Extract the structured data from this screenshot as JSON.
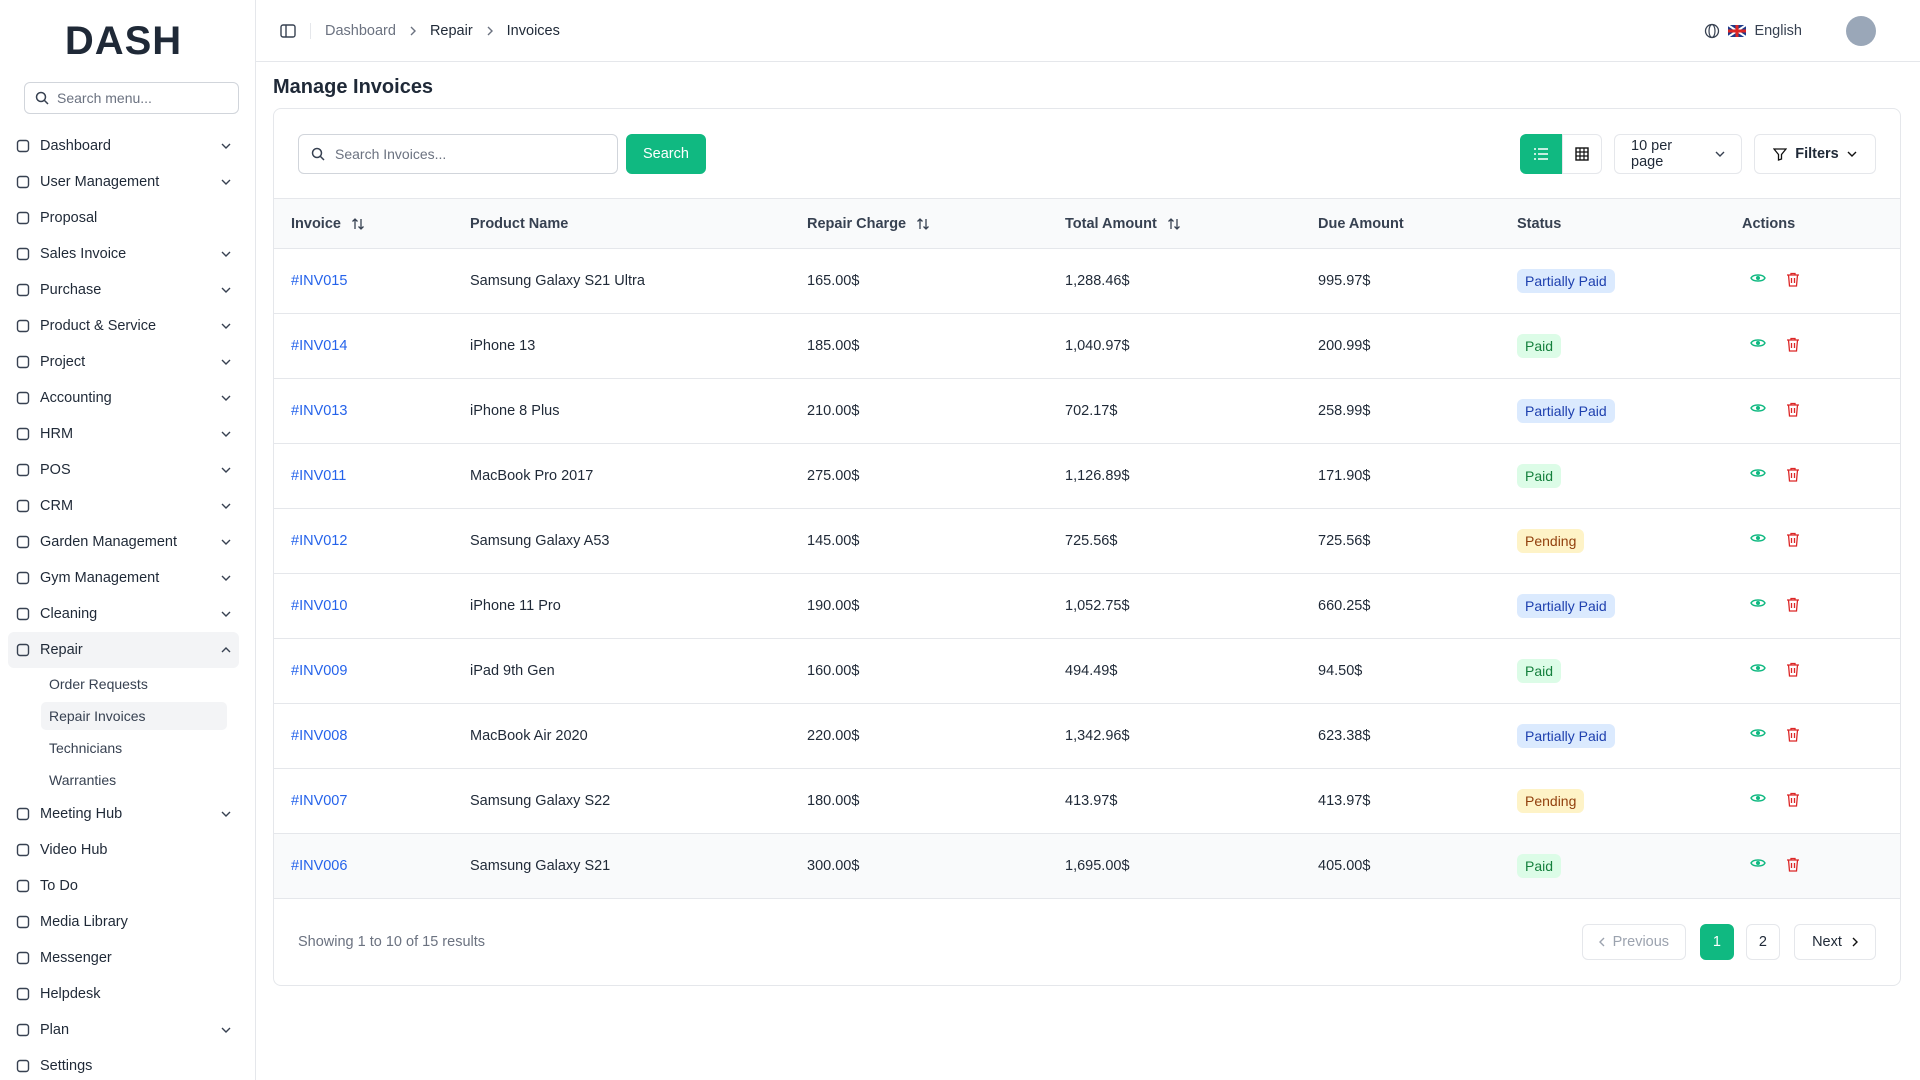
{
  "brand": "DASH",
  "sidebar": {
    "search_placeholder": "Search menu...",
    "items": [
      {
        "label": "Dashboard",
        "expandable": true
      },
      {
        "label": "User Management",
        "expandable": true
      },
      {
        "label": "Proposal",
        "expandable": false
      },
      {
        "label": "Sales Invoice",
        "expandable": true
      },
      {
        "label": "Purchase",
        "expandable": true
      },
      {
        "label": "Product & Service",
        "expandable": true
      },
      {
        "label": "Project",
        "expandable": true
      },
      {
        "label": "Accounting",
        "expandable": true
      },
      {
        "label": "HRM",
        "expandable": true
      },
      {
        "label": "POS",
        "expandable": true
      },
      {
        "label": "CRM",
        "expandable": true
      },
      {
        "label": "Garden Management",
        "expandable": true
      },
      {
        "label": "Gym Management",
        "expandable": true
      },
      {
        "label": "Cleaning",
        "expandable": true
      },
      {
        "label": "Repair",
        "expandable": true,
        "open": true,
        "children": [
          {
            "label": "Order Requests"
          },
          {
            "label": "Repair Invoices",
            "active": true
          },
          {
            "label": "Technicians"
          },
          {
            "label": "Warranties"
          }
        ]
      },
      {
        "label": "Meeting Hub",
        "expandable": true
      },
      {
        "label": "Video Hub",
        "expandable": false
      },
      {
        "label": "To Do",
        "expandable": false
      },
      {
        "label": "Media Library",
        "expandable": false
      },
      {
        "label": "Messenger",
        "expandable": false
      },
      {
        "label": "Helpdesk",
        "expandable": false
      },
      {
        "label": "Plan",
        "expandable": true
      },
      {
        "label": "Settings",
        "expandable": false
      }
    ]
  },
  "header": {
    "breadcrumb": [
      "Dashboard",
      "Repair",
      "Invoices"
    ],
    "language": "English"
  },
  "page": {
    "title": "Manage Invoices",
    "search_placeholder": "Search Invoices...",
    "search_button": "Search",
    "per_page": "10 per page",
    "filters": "Filters"
  },
  "table": {
    "columns": [
      {
        "label": "Invoice",
        "sortable": true
      },
      {
        "label": "Product Name",
        "sortable": false
      },
      {
        "label": "Repair Charge",
        "sortable": true
      },
      {
        "label": "Total Amount",
        "sortable": true
      },
      {
        "label": "Due Amount",
        "sortable": false
      },
      {
        "label": "Status",
        "sortable": false
      },
      {
        "label": "Actions",
        "sortable": false
      }
    ],
    "rows": [
      {
        "invoice": "#INV015",
        "product": "Samsung Galaxy S21 Ultra",
        "repair_charge": "165.00$",
        "total": "1,288.46$",
        "due": "995.97$",
        "status": "Partially Paid",
        "status_tone": "blue"
      },
      {
        "invoice": "#INV014",
        "product": "iPhone 13",
        "repair_charge": "185.00$",
        "total": "1,040.97$",
        "due": "200.99$",
        "status": "Paid",
        "status_tone": "green"
      },
      {
        "invoice": "#INV013",
        "product": "iPhone 8 Plus",
        "repair_charge": "210.00$",
        "total": "702.17$",
        "due": "258.99$",
        "status": "Partially Paid",
        "status_tone": "blue"
      },
      {
        "invoice": "#INV011",
        "product": "MacBook Pro 2017",
        "repair_charge": "275.00$",
        "total": "1,126.89$",
        "due": "171.90$",
        "status": "Paid",
        "status_tone": "green"
      },
      {
        "invoice": "#INV012",
        "product": "Samsung Galaxy A53",
        "repair_charge": "145.00$",
        "total": "725.56$",
        "due": "725.56$",
        "status": "Pending",
        "status_tone": "yellow"
      },
      {
        "invoice": "#INV010",
        "product": "iPhone 11 Pro",
        "repair_charge": "190.00$",
        "total": "1,052.75$",
        "due": "660.25$",
        "status": "Partially Paid",
        "status_tone": "blue"
      },
      {
        "invoice": "#INV009",
        "product": "iPad 9th Gen",
        "repair_charge": "160.00$",
        "total": "494.49$",
        "due": "94.50$",
        "status": "Paid",
        "status_tone": "green"
      },
      {
        "invoice": "#INV008",
        "product": "MacBook Air 2020",
        "repair_charge": "220.00$",
        "total": "1,342.96$",
        "due": "623.38$",
        "status": "Partially Paid",
        "status_tone": "blue"
      },
      {
        "invoice": "#INV007",
        "product": "Samsung Galaxy S22",
        "repair_charge": "180.00$",
        "total": "413.97$",
        "due": "413.97$",
        "status": "Pending",
        "status_tone": "yellow"
      },
      {
        "invoice": "#INV006",
        "product": "Samsung Galaxy S21",
        "repair_charge": "300.00$",
        "total": "1,695.00$",
        "due": "405.00$",
        "status": "Paid",
        "status_tone": "green"
      }
    ]
  },
  "footer": {
    "summary": "Showing 1 to 10 of 15 results",
    "previous": "Previous",
    "pages": [
      "1",
      "2"
    ],
    "current_page": 0,
    "next": "Next"
  }
}
